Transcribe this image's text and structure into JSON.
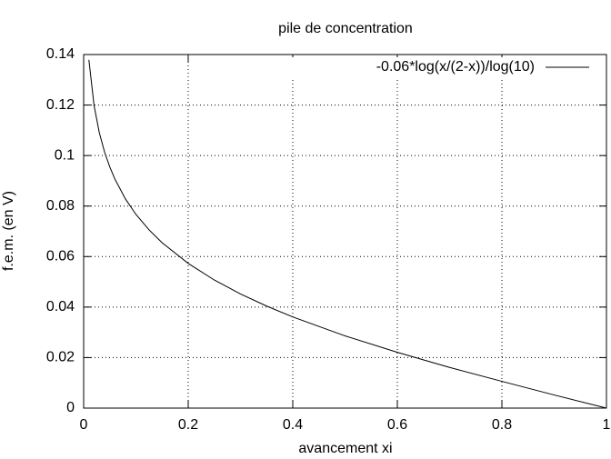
{
  "chart_data": {
    "type": "line",
    "title": "pile de concentration",
    "x_label": "avancement xi",
    "y_label": "f.e.m. (en V)",
    "x": [
      0.01,
      0.02,
      0.03,
      0.04,
      0.05,
      0.06,
      0.08,
      0.1,
      0.125,
      0.15,
      0.2,
      0.25,
      0.3,
      0.35,
      0.4,
      0.5,
      0.6,
      0.7,
      0.8,
      0.9,
      1.0
    ],
    "series": [
      {
        "name": "-0.06*log(x/(2-x))/log(10)",
        "color": "#000000",
        "values": [
          0.1379,
          0.1197,
          0.109,
          0.1014,
          0.0955,
          0.0906,
          0.0828,
          0.0767,
          0.0706,
          0.0655,
          0.0573,
          0.0507,
          0.0452,
          0.0404,
          0.0361,
          0.0286,
          0.0221,
          0.0161,
          0.0106,
          0.0052,
          0
        ]
      }
    ],
    "xlim": [
      0,
      1
    ],
    "ylim": [
      0,
      0.14
    ],
    "xticks": [
      0,
      0.2,
      0.4,
      0.6,
      0.8,
      1
    ],
    "yticks": [
      0,
      0.02,
      0.04,
      0.06,
      0.08,
      0.1,
      0.12,
      0.14
    ],
    "grid": true,
    "legend": "top-right"
  }
}
